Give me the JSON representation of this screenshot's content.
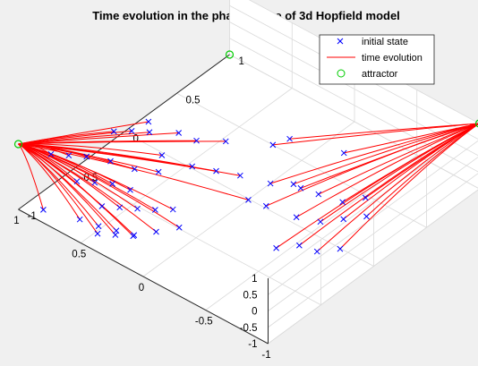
{
  "chart_data": {
    "type": "scatter",
    "title": "Time evolution in the phase space of 3d Hopfield model",
    "xlabel": "",
    "ylabel": "",
    "zlabel": "",
    "xlim": [
      -1,
      1
    ],
    "ylim": [
      -1,
      1
    ],
    "zlim": [
      -1,
      1
    ],
    "x_ticks": [
      "-1",
      "-0.5",
      "0",
      "0.5",
      "1"
    ],
    "y_ticks": [
      "-1",
      "-0.5",
      "0",
      "0.5",
      "1"
    ],
    "z_ticks": [
      "-1",
      "-0.5",
      "0",
      "0.5",
      "1"
    ],
    "grid": true,
    "legend_position": "top-right",
    "colors": {
      "initial": "#0000ff",
      "evolution": "#ff0000",
      "attractor": "#00cc00",
      "axes_bg": "#ffffff",
      "figure_bg": "#f0f0f0"
    },
    "series": [
      {
        "name": "initial state",
        "marker": "x",
        "points": [
          [
            -0.55,
            0.25,
            0.95
          ],
          [
            -0.2,
            0.15,
            0.9
          ],
          [
            -0.15,
            0.05,
            0.85
          ],
          [
            0.1,
            -0.1,
            0.8
          ],
          [
            0.25,
            -0.2,
            0.75
          ],
          [
            0.35,
            -0.25,
            0.9
          ],
          [
            0.5,
            -0.35,
            0.85
          ],
          [
            0.6,
            -0.4,
            0.8
          ],
          [
            0.7,
            -0.45,
            0.7
          ],
          [
            0.55,
            -0.3,
            0.95
          ],
          [
            -0.85,
            0.1,
            0.55
          ],
          [
            -0.75,
            0.0,
            0.45
          ],
          [
            -0.6,
            -0.05,
            0.5
          ],
          [
            -0.5,
            -0.1,
            0.6
          ],
          [
            -0.4,
            -0.05,
            0.4
          ],
          [
            -0.3,
            -0.15,
            0.45
          ],
          [
            -0.1,
            -0.2,
            0.4
          ],
          [
            0.05,
            -0.25,
            0.35
          ],
          [
            0.2,
            -0.3,
            0.3
          ],
          [
            0.4,
            -0.35,
            0.35
          ],
          [
            -0.9,
            0.05,
            0.2
          ],
          [
            -0.8,
            -0.05,
            0.15
          ],
          [
            -0.7,
            -0.15,
            0.1
          ],
          [
            -0.55,
            -0.2,
            0.05
          ],
          [
            -0.35,
            -0.25,
            0.1
          ],
          [
            -0.25,
            -0.3,
            0.2
          ],
          [
            -0.9,
            -0.2,
            -0.2
          ],
          [
            -0.8,
            -0.3,
            -0.25
          ],
          [
            -0.7,
            -0.35,
            -0.15
          ],
          [
            -0.6,
            -0.45,
            -0.2
          ],
          [
            0.3,
            -0.5,
            0.4
          ],
          [
            0.45,
            -0.55,
            0.3
          ],
          [
            0.6,
            -0.6,
            0.35
          ],
          [
            0.75,
            -0.65,
            0.3
          ],
          [
            0.85,
            -0.7,
            0.25
          ],
          [
            0.95,
            -0.75,
            0.2
          ],
          [
            0.5,
            -0.7,
            0.1
          ],
          [
            0.6,
            -0.75,
            0.05
          ],
          [
            0.7,
            -0.8,
            0.0
          ],
          [
            0.4,
            -0.65,
            0.0
          ],
          [
            0.1,
            -0.6,
            -0.1
          ],
          [
            0.2,
            -0.65,
            -0.2
          ],
          [
            0.3,
            -0.7,
            -0.25
          ],
          [
            0.4,
            -0.75,
            -0.3
          ],
          [
            0.5,
            -0.8,
            -0.35
          ],
          [
            0.2,
            -0.85,
            -0.5
          ],
          [
            0.3,
            -0.9,
            -0.45
          ],
          [
            0.4,
            -0.95,
            -0.4
          ],
          [
            0.55,
            -0.95,
            -0.5
          ],
          [
            0.8,
            -1.0,
            -0.6
          ],
          [
            0.25,
            -0.8,
            -0.75
          ],
          [
            0.35,
            -0.85,
            -0.8
          ],
          [
            0.45,
            -0.9,
            -0.85
          ],
          [
            0.15,
            -0.7,
            -0.65
          ],
          [
            0.05,
            -0.6,
            -0.55
          ]
        ]
      },
      {
        "name": "time evolution",
        "marker": "line"
      },
      {
        "name": "attractor",
        "marker": "o",
        "points": [
          [
            -1,
            1,
            1
          ],
          [
            1,
            -1,
            1
          ],
          [
            1,
            1,
            -1
          ]
        ]
      }
    ]
  }
}
